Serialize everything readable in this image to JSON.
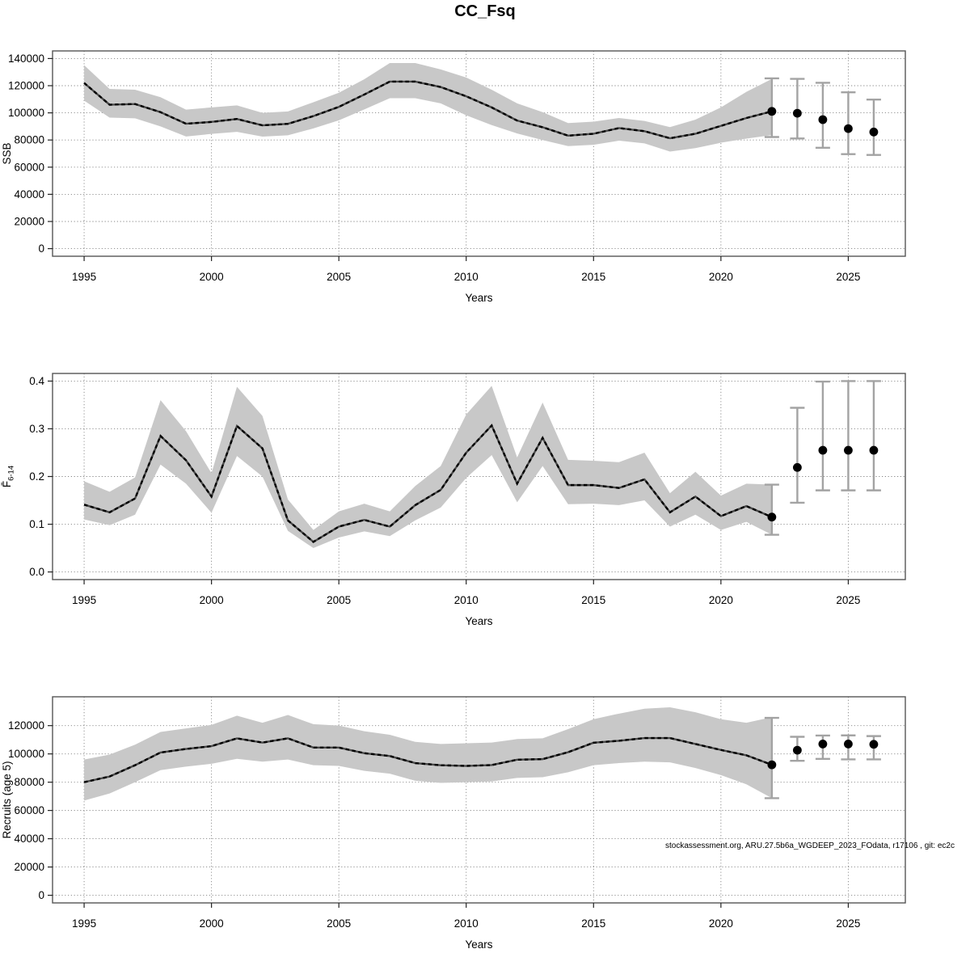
{
  "title": "CC_Fsq",
  "xlabel": "Years",
  "footer": "stockassessment.org, ARU.27.5b6a_WGDEEP_2023_FOdata, r17106 , git: ec2c",
  "colors": {
    "band": "#c8c8c8",
    "line": "#000000",
    "line_base": "#4a4a4a",
    "error_bar": "#a3a3a3",
    "dot": "#000000",
    "grid": "#848484",
    "frame": "#555555",
    "text": "#000000"
  },
  "chart_data": [
    {
      "type": "line",
      "name": "ssb",
      "title": "",
      "ylabel": "SSB",
      "ylabel_parts": {
        "main": "SSB",
        "sub": ""
      },
      "xlabel": "Years",
      "ylim": [
        0,
        140000
      ],
      "grid": true,
      "xticks": [
        1995,
        2000,
        2005,
        2010,
        2015,
        2020,
        2025
      ],
      "yticks": [
        {
          "v": 0,
          "label": "0"
        },
        {
          "v": 20000,
          "label": "20000"
        },
        {
          "v": 40000,
          "label": "40000"
        },
        {
          "v": 60000,
          "label": "60000"
        },
        {
          "v": 80000,
          "label": "80000"
        },
        {
          "v": 100000,
          "label": "100000"
        },
        {
          "v": 120000,
          "label": "120000"
        },
        {
          "v": 140000,
          "label": "140000"
        }
      ],
      "years": [
        1995,
        1996,
        1997,
        1998,
        1999,
        2000,
        2001,
        2002,
        2003,
        2004,
        2005,
        2006,
        2007,
        2008,
        2009,
        2010,
        2011,
        2012,
        2013,
        2014,
        2015,
        2016,
        2017,
        2018,
        2019,
        2020,
        2021,
        2022
      ],
      "values": [
        122000,
        106000,
        106500,
        100500,
        92000,
        93300,
        95500,
        90800,
        91900,
        97600,
        104400,
        113500,
        123000,
        123000,
        119000,
        112200,
        104000,
        94300,
        89400,
        83200,
        84600,
        88800,
        86500,
        81300,
        84600,
        90400,
        96200,
        101100
      ],
      "lower": [
        109000,
        96500,
        96000,
        90000,
        82600,
        84500,
        86000,
        82500,
        83500,
        88500,
        94500,
        102500,
        110800,
        110800,
        107000,
        98200,
        91000,
        84800,
        80000,
        75500,
        76500,
        79500,
        77500,
        71500,
        74000,
        78000,
        81000,
        83600
      ],
      "upper": [
        135100,
        117600,
        117000,
        111500,
        102400,
        104000,
        105500,
        100000,
        101000,
        107800,
        114800,
        124800,
        136700,
        136700,
        132000,
        126000,
        117000,
        107000,
        100500,
        92500,
        93500,
        96200,
        94000,
        89500,
        95000,
        104000,
        115500,
        125000
      ],
      "forecast": {
        "years": [
          2022,
          2023,
          2024,
          2025,
          2026
        ],
        "values": [
          101100,
          99700,
          95000,
          88400,
          85900
        ],
        "ci_low": [
          82200,
          81100,
          74300,
          69600,
          69000
        ],
        "ci_high": [
          125400,
          125000,
          122100,
          115100,
          109800
        ]
      }
    },
    {
      "type": "line",
      "name": "fbar",
      "title": "",
      "ylabel": "F6-14",
      "ylabel_parts": {
        "main": "F̄",
        "sub": "6-14"
      },
      "xlabel": "Years",
      "ylim": [
        0,
        0.4
      ],
      "grid": true,
      "xticks": [
        1995,
        2000,
        2005,
        2010,
        2015,
        2020,
        2025
      ],
      "yticks": [
        {
          "v": 0,
          "label": "0.0"
        },
        {
          "v": 0.1,
          "label": "0.1"
        },
        {
          "v": 0.2,
          "label": "0.2"
        },
        {
          "v": 0.3,
          "label": "0.3"
        },
        {
          "v": 0.4,
          "label": "0.4"
        }
      ],
      "years": [
        1995,
        1996,
        1997,
        1998,
        1999,
        2000,
        2001,
        2002,
        2003,
        2004,
        2005,
        2006,
        2007,
        2008,
        2009,
        2010,
        2011,
        2012,
        2013,
        2014,
        2015,
        2016,
        2017,
        2018,
        2019,
        2020,
        2021,
        2022
      ],
      "values": [
        0.141,
        0.125,
        0.154,
        0.285,
        0.234,
        0.158,
        0.306,
        0.259,
        0.108,
        0.063,
        0.095,
        0.109,
        0.095,
        0.14,
        0.172,
        0.25,
        0.307,
        0.185,
        0.281,
        0.182,
        0.182,
        0.176,
        0.194,
        0.125,
        0.158,
        0.117,
        0.138,
        0.115
      ],
      "lower": [
        0.11,
        0.098,
        0.12,
        0.225,
        0.185,
        0.124,
        0.243,
        0.2,
        0.086,
        0.05,
        0.072,
        0.085,
        0.075,
        0.108,
        0.135,
        0.197,
        0.245,
        0.146,
        0.222,
        0.142,
        0.143,
        0.14,
        0.15,
        0.095,
        0.12,
        0.088,
        0.105,
        0.078
      ],
      "upper": [
        0.19,
        0.168,
        0.198,
        0.36,
        0.295,
        0.207,
        0.388,
        0.327,
        0.152,
        0.088,
        0.127,
        0.143,
        0.127,
        0.18,
        0.222,
        0.33,
        0.39,
        0.24,
        0.355,
        0.235,
        0.233,
        0.23,
        0.25,
        0.165,
        0.21,
        0.16,
        0.185,
        0.183
      ],
      "forecast": {
        "years": [
          2022,
          2023,
          2024,
          2025,
          2026
        ],
        "values": [
          0.115,
          0.219,
          0.255,
          0.255,
          0.255
        ],
        "ci_low": [
          0.078,
          0.145,
          0.171,
          0.171,
          0.171
        ],
        "ci_high": [
          0.183,
          0.344,
          0.399,
          0.4,
          0.4
        ]
      }
    },
    {
      "type": "line",
      "name": "recruits",
      "title": "",
      "ylabel": "Recruits (age 5)",
      "ylabel_parts": {
        "main": "Recruits (age 5)",
        "sub": ""
      },
      "xlabel": "Years",
      "ylim": [
        0,
        135000
      ],
      "grid": true,
      "xticks": [
        1995,
        2000,
        2005,
        2010,
        2015,
        2020,
        2025
      ],
      "yticks": [
        {
          "v": 0,
          "label": "0"
        },
        {
          "v": 20000,
          "label": "20000"
        },
        {
          "v": 40000,
          "label": "40000"
        },
        {
          "v": 60000,
          "label": "60000"
        },
        {
          "v": 80000,
          "label": "80000"
        },
        {
          "v": 100000,
          "label": "100000"
        },
        {
          "v": 120000,
          "label": "120000"
        }
      ],
      "years": [
        1995,
        1996,
        1997,
        1998,
        1999,
        2000,
        2001,
        2002,
        2003,
        2004,
        2005,
        2006,
        2007,
        2008,
        2009,
        2010,
        2011,
        2012,
        2013,
        2014,
        2015,
        2016,
        2017,
        2018,
        2019,
        2020,
        2021,
        2022
      ],
      "values": [
        80000,
        84000,
        92000,
        101000,
        103500,
        105500,
        111000,
        108000,
        111000,
        104500,
        104500,
        100500,
        98500,
        93500,
        92000,
        91500,
        92100,
        95900,
        96300,
        101200,
        107900,
        109300,
        111200,
        111200,
        107000,
        102800,
        99000,
        92300
      ],
      "lower": [
        67000,
        72000,
        80000,
        88500,
        91000,
        93000,
        96500,
        94500,
        96000,
        92000,
        91500,
        88000,
        86000,
        81000,
        79500,
        80000,
        80500,
        83000,
        83500,
        87000,
        92000,
        93500,
        94500,
        94000,
        90000,
        85000,
        78500,
        68700
      ],
      "upper": [
        96000,
        99500,
        106500,
        115500,
        118000,
        120500,
        127000,
        122000,
        127500,
        121000,
        120000,
        116000,
        113500,
        108500,
        107000,
        107500,
        108000,
        110500,
        111000,
        117500,
        124500,
        128500,
        132000,
        133000,
        129500,
        124500,
        122000,
        126000
      ],
      "forecast": {
        "years": [
          2022,
          2023,
          2024,
          2025,
          2026
        ],
        "values": [
          92300,
          102600,
          107000,
          107000,
          106800
        ],
        "ci_low": [
          68700,
          95100,
          96500,
          96100,
          96100
        ],
        "ci_high": [
          125500,
          112100,
          113000,
          113100,
          112600
        ]
      }
    }
  ]
}
